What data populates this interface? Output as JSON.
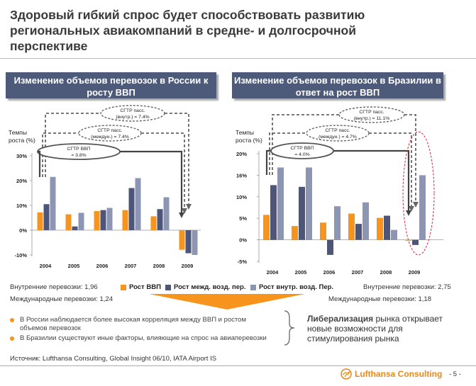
{
  "title": "Здоровый гибкий спрос будет способствовать развитию региональных авиакомпаний в средне- и долгосрочной перспективе",
  "panels": [
    {
      "heading": "Изменение объемов перевозок в России к росту ВВП"
    },
    {
      "heading": "Изменение объемов перевозок в Бразилии в ответ на рост ВВП"
    }
  ],
  "legend": {
    "gdp": "Рост ВВП",
    "intl": "Рост межд. возд. пер.",
    "dom": "Рост внутр. возд. Пер."
  },
  "stats": {
    "russia_domestic": "Внутренние перевозки: 1,96",
    "russia_intl": "Международные перевозки: 1,24",
    "brazil_domestic": "Внутренние перевозки: 2,75",
    "brazil_intl": "Международные перевозки: 1,18"
  },
  "bullets": [
    "В России наблюдается более высокая корреляция между ВВП и ростом объемов перевозок",
    "В Бразилии существуют иные факторы, влияющие на спрос на авиаперевозки"
  ],
  "conclusion": {
    "bold": "Либерализация",
    "rest": " рынка открывает новые возможности для стимулирования рынка"
  },
  "source": "Источник: Lufthansa Consulting, Global Insight 06/10, IATA Airport IS",
  "brand": "Lufthansa Consulting",
  "page_number": "- 5 -",
  "colors": {
    "gdp": "#f7941d",
    "intl": "#4d5579",
    "dom": "#8c96b4",
    "accent": "#f7941d"
  },
  "chart_data": [
    {
      "type": "bar",
      "title": "Изменение объемов перевозок в России к росту ВВП",
      "ylabel": "Темпы роста (%)",
      "categories": [
        "2004",
        "2005",
        "2006",
        "2007",
        "2008",
        "2009"
      ],
      "yticks": [
        "30%",
        "20%",
        "10%",
        "0%",
        "-10%"
      ],
      "ylim": [
        -10,
        30
      ],
      "series": [
        {
          "name": "Рост ВВП",
          "values": [
            7.2,
            6.4,
            7.7,
            8.1,
            5.6,
            -7.9
          ]
        },
        {
          "name": "Рост межд. возд. пер.",
          "values": [
            10.5,
            1.5,
            8.1,
            17.0,
            8.5,
            -9.3
          ]
        },
        {
          "name": "Рост внутр. возд. Пер.",
          "values": [
            21.5,
            7.0,
            9.0,
            21.0,
            13.3,
            -10.0
          ]
        }
      ],
      "annotations": [
        "СГТР ВВП = 3.8%",
        "СГТР пасс. (междун.) = 7.4%",
        "СГТР пасс. (внутр.) = 7.4%"
      ]
    },
    {
      "type": "bar",
      "title": "Изменение объемов перевозок в Бразилии в ответ на рост ВВП",
      "ylabel": "Темпы роста (%)",
      "categories": [
        "2004",
        "2005",
        "2006",
        "2007",
        "2008",
        "2009"
      ],
      "yticks": [
        "20%",
        "16%",
        "10%",
        "5%",
        "0%",
        "-5%"
      ],
      "ylim": [
        -5,
        20
      ],
      "series": [
        {
          "name": "Рост ВВП",
          "values": [
            5.8,
            3.2,
            4.0,
            6.1,
            5.1,
            -0.2
          ]
        },
        {
          "name": "Рост межд. возд. пер.",
          "values": [
            12.7,
            12.3,
            -3.5,
            3.7,
            5.6,
            -1.2
          ]
        },
        {
          "name": "Рост внутр. возд. Пер.",
          "values": [
            16.8,
            16.8,
            7.8,
            8.7,
            2.3,
            15.0
          ]
        }
      ],
      "annotations": [
        "СГТР ВВП = 4.0%",
        "СГТР пасс. (междун.) = 4.7%",
        "СГТР пасс. (внутр.) = 11.1%"
      ]
    }
  ]
}
